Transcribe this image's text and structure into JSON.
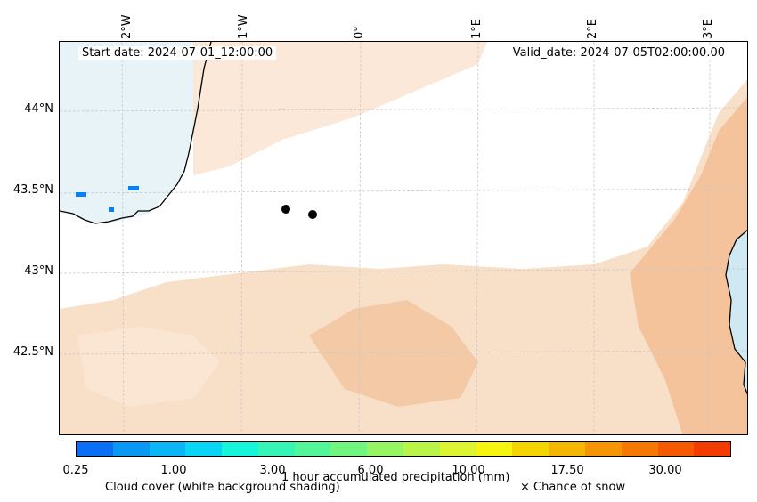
{
  "map": {
    "start_date": "Start date: 2024-07-01_12:00:00",
    "valid_date": "Valid_date: 2024-07-05T02:00:00.00",
    "lon_labels": [
      "2°W",
      "1°W",
      "0°",
      "1°E",
      "2°E",
      "3°E"
    ],
    "lat_labels": [
      "44°N",
      "43.5°N",
      "43°N",
      "42.5°N"
    ],
    "colors": {
      "land_fill": "#f8dfc8",
      "heavy_fill": "#f4b98a",
      "sea": "#cfe8f1",
      "coastline": "#000000",
      "gridline": "#c8c8c8",
      "station": "#000000",
      "precip": "#0a7ff5"
    }
  },
  "colorbar": {
    "title": "1 hour accumulated precipitation (mm)",
    "tick_labels": [
      "0.25",
      "1.00",
      "3.00",
      "6.00",
      "10.00",
      "17.50",
      "30.00"
    ],
    "colors": [
      "#0a6ff5",
      "#0a98f5",
      "#0ab6f5",
      "#0ad5f5",
      "#14f5d9",
      "#34f5b6",
      "#52f598",
      "#72f57e",
      "#95f562",
      "#b8f548",
      "#dcf530",
      "#f5f510",
      "#f5d500",
      "#f5b600",
      "#f59600",
      "#f57800",
      "#f55a00",
      "#f53c00"
    ]
  },
  "notes": {
    "cloud_cover": "Cloud cover (white background shading)",
    "snow": "× Chance of snow"
  }
}
